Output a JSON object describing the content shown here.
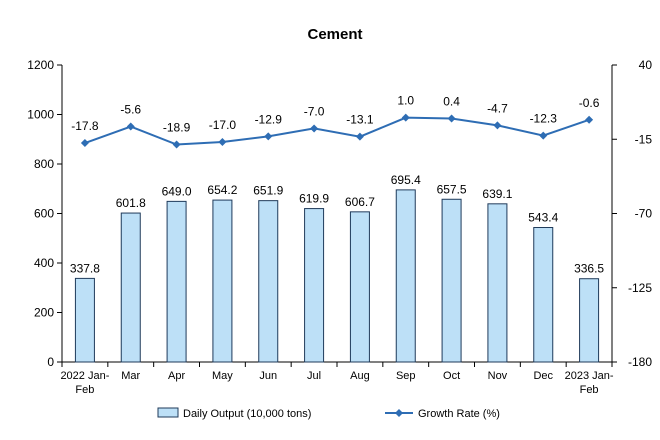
{
  "chart_data": {
    "type": "bar",
    "title": "Cement",
    "categories": [
      [
        "2022 Jan-",
        "Feb"
      ],
      [
        "Mar"
      ],
      [
        "Apr"
      ],
      [
        "May"
      ],
      [
        "Jun"
      ],
      [
        "Jul"
      ],
      [
        "Aug"
      ],
      [
        "Sep"
      ],
      [
        "Oct"
      ],
      [
        "Nov"
      ],
      [
        "Dec"
      ],
      [
        "2023 Jan-",
        "Feb"
      ]
    ],
    "series": [
      {
        "name": "Daily Output (10,000 tons)",
        "type": "bar",
        "axis": "left",
        "values": [
          337.8,
          601.8,
          649.0,
          654.2,
          651.9,
          619.9,
          606.7,
          695.4,
          657.5,
          639.1,
          543.4,
          336.5
        ],
        "labels": [
          "337.8",
          "601.8",
          "649.0",
          "654.2",
          "651.9",
          "619.9",
          "606.7",
          "695.4",
          "657.5",
          "639.1",
          "543.4",
          "336.5"
        ],
        "color": "#bde0f7",
        "stroke": "#1f3a5a"
      },
      {
        "name": "Growth Rate (%)",
        "type": "line",
        "axis": "right",
        "values": [
          -17.8,
          -5.6,
          -18.9,
          -17.0,
          -12.9,
          -7.0,
          -13.1,
          1.0,
          0.4,
          -4.7,
          -12.3,
          -0.6
        ],
        "labels": [
          "-17.8",
          "-5.6",
          "-18.9",
          "-17.0",
          "-12.9",
          "-7.0",
          "-13.1",
          "1.0",
          "0.4",
          "-4.7",
          "-12.3",
          "-0.6"
        ],
        "color": "#2e6db4"
      }
    ],
    "y_left": {
      "lim": [
        0,
        1200
      ],
      "ticks": [
        "0",
        "200",
        "400",
        "600",
        "800",
        "1000",
        "1200"
      ],
      "tick_values": [
        0,
        200,
        400,
        600,
        800,
        1000,
        1200
      ]
    },
    "y_right": {
      "lim": [
        -180,
        40
      ],
      "ticks": [
        "-180",
        "-125",
        "-70",
        "-15",
        "40"
      ],
      "tick_values": [
        -180,
        -125,
        -70,
        -15,
        40
      ]
    },
    "legend_position": "bottom",
    "grid": false
  }
}
